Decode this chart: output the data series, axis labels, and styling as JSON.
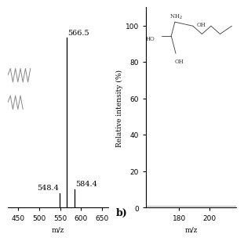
{
  "left_panel": {
    "peaks": [
      {
        "mz": 548.4,
        "intensity": 8.5,
        "label": "548.4",
        "label_side": "left"
      },
      {
        "mz": 566.5,
        "intensity": 100.0,
        "label": "566.5",
        "label_side": "right"
      },
      {
        "mz": 584.4,
        "intensity": 11.0,
        "label": "584.4",
        "label_side": "right"
      }
    ],
    "xlim": [
      425,
      665
    ],
    "ylim": [
      0,
      118
    ],
    "xticks": [
      450,
      500,
      550,
      600,
      650
    ],
    "yticks": [],
    "xlabel": "m/z"
  },
  "right_panel": {
    "baseline_y": 1.0,
    "xlim": [
      158,
      218
    ],
    "ylim": [
      0,
      110
    ],
    "xticks": [
      180,
      200
    ],
    "yticks": [
      0,
      20,
      40,
      60,
      80,
      100
    ],
    "xlabel": "m/z",
    "ylabel": "Relative intensity (%)"
  },
  "background_color": "#ffffff",
  "line_color": "#000000",
  "chain_color": "#888888",
  "font_size_label": 6.5,
  "font_size_tick": 6.5,
  "font_size_peak": 7,
  "font_size_b": 9
}
